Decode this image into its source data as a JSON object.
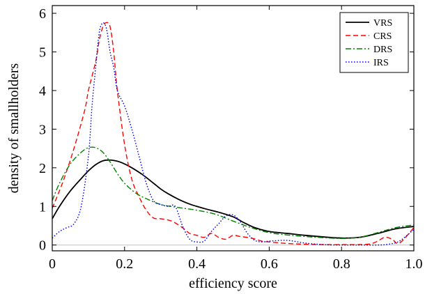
{
  "chart_data": {
    "type": "line",
    "title": "",
    "xlabel": "efficiency score",
    "ylabel": "density of smallholders",
    "xlim": [
      0,
      1.0
    ],
    "ylim": [
      -0.15,
      6.2
    ],
    "x_ticks": [
      "0",
      "0.2",
      "0.4",
      "0.6",
      "0.8",
      "1.0"
    ],
    "x_tick_values": [
      0,
      0.2,
      0.4,
      0.6,
      0.8,
      1.0
    ],
    "y_ticks": [
      "0",
      "1",
      "2",
      "3",
      "4",
      "5",
      "6"
    ],
    "y_tick_values": [
      0,
      1,
      2,
      3,
      4,
      5,
      6
    ],
    "grid": false,
    "baseline": {
      "y": 0,
      "color": "#c8c8c8"
    },
    "legend": {
      "position": "top-right"
    },
    "series": [
      {
        "name": "VRS",
        "color": "#000000",
        "style": "solid",
        "x": [
          0,
          0.02,
          0.05,
          0.08,
          0.1,
          0.12,
          0.14,
          0.16,
          0.18,
          0.2,
          0.22,
          0.25,
          0.28,
          0.3,
          0.32,
          0.35,
          0.38,
          0.4,
          0.43,
          0.46,
          0.5,
          0.53,
          0.56,
          0.6,
          0.65,
          0.7,
          0.75,
          0.8,
          0.85,
          0.9,
          0.95,
          1.0
        ],
        "y": [
          0.68,
          1.0,
          1.4,
          1.72,
          1.92,
          2.08,
          2.18,
          2.2,
          2.17,
          2.1,
          2.0,
          1.82,
          1.6,
          1.45,
          1.33,
          1.18,
          1.06,
          1.0,
          0.92,
          0.85,
          0.73,
          0.58,
          0.45,
          0.35,
          0.3,
          0.25,
          0.21,
          0.18,
          0.2,
          0.3,
          0.42,
          0.48
        ]
      },
      {
        "name": "CRS",
        "color": "#ff0000",
        "style": "dashed",
        "x": [
          0,
          0.03,
          0.06,
          0.09,
          0.1,
          0.12,
          0.13,
          0.14,
          0.15,
          0.16,
          0.17,
          0.18,
          0.2,
          0.22,
          0.24,
          0.26,
          0.28,
          0.3,
          0.33,
          0.36,
          0.38,
          0.4,
          0.42,
          0.44,
          0.46,
          0.48,
          0.5,
          0.52,
          0.55,
          0.58,
          0.6,
          0.65,
          0.7,
          0.75,
          0.8,
          0.85,
          0.88,
          0.9,
          0.92,
          0.94,
          0.96,
          1.0
        ],
        "y": [
          0.95,
          1.65,
          2.5,
          3.5,
          4.0,
          4.75,
          5.3,
          5.65,
          5.76,
          5.65,
          5.0,
          4.0,
          2.6,
          1.7,
          1.25,
          0.9,
          0.7,
          0.68,
          0.62,
          0.45,
          0.3,
          0.25,
          0.2,
          0.3,
          0.2,
          0.15,
          0.25,
          0.22,
          0.18,
          0.1,
          0.08,
          0.04,
          0.02,
          0.01,
          0.01,
          0.01,
          0.03,
          0.1,
          0.2,
          0.15,
          0.05,
          0.45
        ]
      },
      {
        "name": "DRS",
        "color": "#008000",
        "style": "dashdot",
        "x": [
          0,
          0.02,
          0.05,
          0.08,
          0.1,
          0.12,
          0.14,
          0.16,
          0.18,
          0.2,
          0.23,
          0.26,
          0.3,
          0.35,
          0.4,
          0.45,
          0.5,
          0.55,
          0.6,
          0.65,
          0.7,
          0.75,
          0.8,
          0.85,
          0.9,
          0.95,
          1.0
        ],
        "y": [
          1.15,
          1.6,
          2.1,
          2.4,
          2.52,
          2.52,
          2.4,
          2.15,
          1.85,
          1.6,
          1.35,
          1.2,
          1.05,
          0.97,
          0.9,
          0.8,
          0.62,
          0.45,
          0.32,
          0.26,
          0.22,
          0.19,
          0.17,
          0.2,
          0.32,
          0.45,
          0.52
        ]
      },
      {
        "name": "IRS",
        "color": "#0000ff",
        "style": "dotted",
        "x": [
          0,
          0.02,
          0.04,
          0.06,
          0.08,
          0.1,
          0.11,
          0.12,
          0.13,
          0.14,
          0.15,
          0.16,
          0.17,
          0.18,
          0.2,
          0.22,
          0.24,
          0.26,
          0.28,
          0.3,
          0.32,
          0.34,
          0.36,
          0.38,
          0.4,
          0.42,
          0.44,
          0.46,
          0.48,
          0.5,
          0.52,
          0.54,
          0.56,
          0.58,
          0.6,
          0.65,
          0.7,
          0.75,
          0.8,
          0.85,
          0.9,
          0.93,
          0.96,
          1.0
        ],
        "y": [
          0.18,
          0.35,
          0.45,
          0.55,
          1.0,
          2.3,
          3.6,
          4.6,
          5.5,
          5.75,
          5.6,
          5.0,
          4.6,
          4.0,
          3.6,
          3.0,
          2.3,
          1.6,
          1.15,
          1.05,
          1.0,
          1.0,
          0.5,
          0.15,
          0.08,
          0.1,
          0.35,
          0.55,
          0.75,
          0.78,
          0.6,
          0.3,
          0.12,
          0.08,
          0.1,
          0.12,
          0.05,
          0.01,
          0.0,
          0.0,
          0.0,
          0.02,
          0.1,
          0.4
        ]
      }
    ]
  }
}
